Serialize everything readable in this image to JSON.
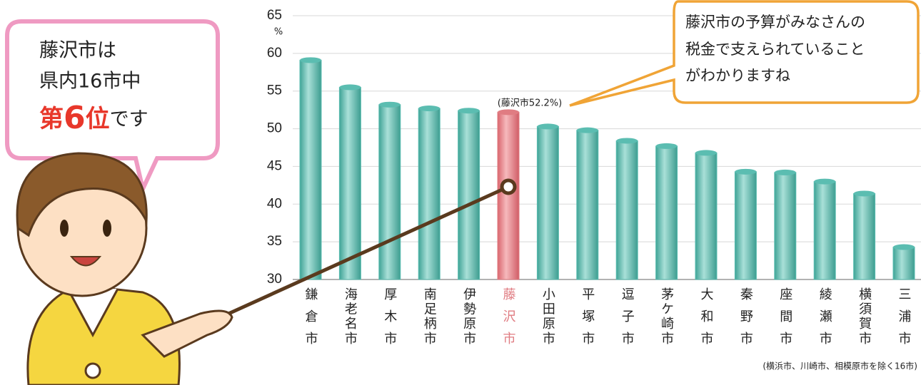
{
  "chart_data": {
    "type": "bar",
    "unit": "%",
    "categories": [
      "鎌倉市",
      "海老名市",
      "厚木市",
      "南足柄市",
      "伊勢原市",
      "藤沢市",
      "小田原市",
      "平塚市",
      "逗子市",
      "茅ケ崎市",
      "大和市",
      "秦野市",
      "座間市",
      "綾瀬市",
      "横須賀市",
      "三浦市"
    ],
    "values": [
      59.1,
      55.5,
      53.2,
      52.7,
      52.4,
      52.2,
      50.3,
      49.8,
      48.4,
      47.7,
      46.8,
      44.3,
      44.2,
      43.0,
      41.4,
      34.3
    ],
    "color": "#5bbdb1",
    "highlight": "藤沢市",
    "highlight_color": "#e07c82",
    "ylim": [
      30,
      65
    ],
    "yticks": [
      30,
      35,
      40,
      45,
      50,
      55,
      60,
      65
    ],
    "grid": true,
    "annotation": "(藤沢市52.2%)",
    "footnote": "(横浜市、川崎市、相模原市を除く16市)"
  },
  "left_bubble": {
    "line1": "藤沢市は",
    "line2": "県内16市中",
    "rank_prefix": "第",
    "rank": "6",
    "rank_suffix": "位",
    "ending": "です"
  },
  "right_bubble": {
    "lines": [
      "藤沢市の予算がみなさんの",
      "税金で支えられていること",
      "がわかりますね"
    ]
  }
}
